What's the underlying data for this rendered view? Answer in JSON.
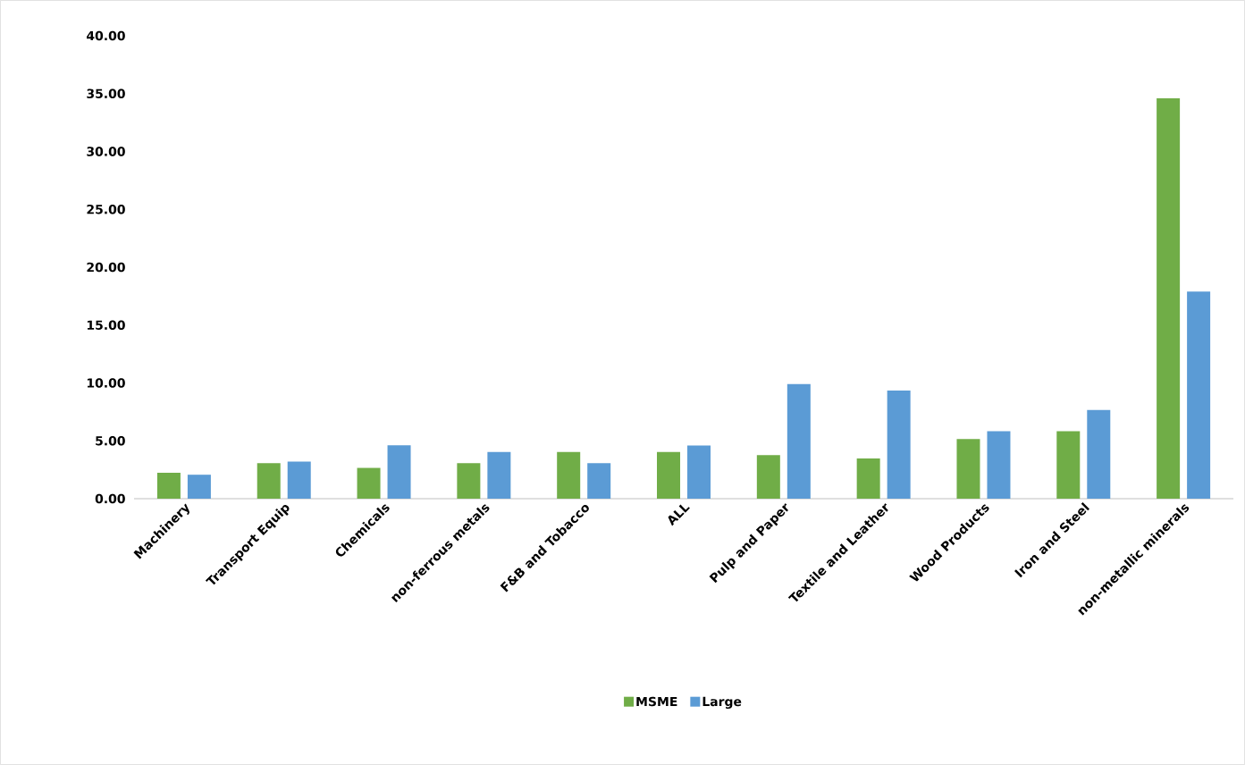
{
  "chart_data": {
    "type": "bar",
    "categories": [
      "Machinery",
      "Transport Equip",
      "Chemicals",
      "non-ferrous metals",
      "F&B and Tobacco",
      "ALL",
      "Pulp and Paper",
      "Textile and Leather",
      "Wood Products",
      "Iron and Steel",
      "non-metallic minerals"
    ],
    "series": [
      {
        "name": "MSME",
        "color": "#70ad47",
        "values": [
          2.24,
          3.07,
          2.66,
          3.07,
          4.03,
          4.04,
          3.76,
          3.48,
          5.16,
          5.83,
          34.6
        ]
      },
      {
        "name": "Large",
        "color": "#5b9bd5",
        "values": [
          2.07,
          3.2,
          4.62,
          4.03,
          3.07,
          4.6,
          9.9,
          9.34,
          5.83,
          7.66,
          17.9
        ]
      }
    ],
    "ylim": [
      0,
      40
    ],
    "yticks": [
      {
        "value": 0,
        "label": "0.00"
      },
      {
        "value": 5,
        "label": "5.00"
      },
      {
        "value": 10,
        "label": "10.00"
      },
      {
        "value": 15,
        "label": "15.00"
      },
      {
        "value": 20,
        "label": "20.00"
      },
      {
        "value": 25,
        "label": "25.00"
      },
      {
        "value": 30,
        "label": "30.00"
      },
      {
        "value": 35,
        "label": "35.00"
      },
      {
        "value": 40,
        "label": "40.00"
      }
    ],
    "grid": false,
    "legend": "bottom"
  }
}
